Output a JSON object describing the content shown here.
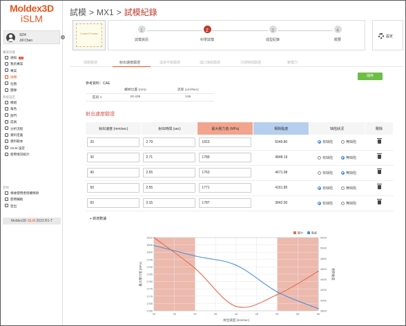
{
  "brand": {
    "line1": "Moldex3D",
    "line2": "iSLM"
  },
  "user": {
    "id": "SD4",
    "name": "Jill Chen"
  },
  "sidebar": {
    "section1": "專案功能",
    "items1": [
      {
        "label": "通知",
        "badge": "17"
      },
      {
        "label": "我的專案"
      },
      {
        "label": "專案"
      },
      {
        "label": "試模"
      },
      {
        "label": "任務"
      },
      {
        "label": "團隊"
      }
    ],
    "section2": "系統設定",
    "items2": [
      {
        "label": "模組"
      },
      {
        "label": "角色"
      },
      {
        "label": "部門"
      },
      {
        "label": "成員"
      },
      {
        "label": "分析流程"
      },
      {
        "label": "資料定義"
      },
      {
        "label": "資料範本"
      },
      {
        "label": "iSLM 設定"
      },
      {
        "label": "使用情況統計"
      }
    ],
    "section3": "其他",
    "items3": [
      {
        "label": "根據使用者授權條款"
      },
      {
        "label": "使用輔助"
      },
      {
        "label": "登出"
      }
    ],
    "version_prefix": "Moldex3D ",
    "version_accent": "iSLM",
    "version_suffix": " 2023 R1-T"
  },
  "header": {
    "crumb1": "試模",
    "crumb2": "MX1",
    "current": "試模紀錄",
    "sep": ">"
  },
  "stepper": {
    "thumb_text": "Content Preview",
    "steps": [
      {
        "num": "1",
        "label": "試模資訊"
      },
      {
        "num": "2",
        "label": "科學試模"
      },
      {
        "num": "3",
        "label": "成型紀錄"
      },
      {
        "num": "4",
        "label": "概要"
      }
    ],
    "setting_label": "設定"
  },
  "tabs": [
    "保壓驗證",
    "射出速度驗證",
    "澆道平衡驗證",
    "澆口凍結驗證",
    "冷卻時間驗證",
    "鎖模力"
  ],
  "save_label": "儲存",
  "reference": {
    "title": "參考資料：CAE",
    "headers": [
      "",
      "螺桿位置 (mm)",
      "流率 (cm³/sec)"
    ],
    "row": [
      "區段 1",
      "20.439",
      "136"
    ]
  },
  "section_title": "射出速度驗證",
  "table": {
    "headers": [
      "射出速度 (mm/sec)",
      "射出時間 (sec)",
      "最大壓力值 (MPa)",
      "相對黏度",
      "缺陷狀況",
      "刪除"
    ],
    "radio_labels": [
      "有缺陷",
      "無缺陷"
    ],
    "rows": [
      {
        "speed": "20",
        "time": "2.79",
        "pressure": "1810",
        "viscosity": "5049.80",
        "defect": 0
      },
      {
        "speed": "30",
        "time": "2.71",
        "pressure": "1789",
        "viscosity": "4848.19",
        "defect": 1
      },
      {
        "speed": "40",
        "time": "2.65",
        "pressure": "1763",
        "viscosity": "4671.98",
        "defect": 1
      },
      {
        "speed": "50",
        "time": "2.55",
        "pressure": "1771",
        "viscosity": "4161.85",
        "defect": 0
      },
      {
        "speed": "60",
        "posfix": "",
        "time": "2.15",
        "pressure": "1787",
        "viscosity": "3842.00",
        "defect": 0
      }
    ],
    "add_row": "+  新增數據"
  },
  "chart_data": {
    "type": "line",
    "xlabel": "射出速度 [mm/sec]",
    "ylabel_left": "最大壓力值 [MPa]",
    "ylabel_right": "相對黏度",
    "x_range": [
      20,
      60
    ],
    "x_ticks": [
      "20",
      "25",
      "30",
      "35",
      "40",
      "45",
      "50",
      "55",
      "60"
    ],
    "left_ylim": [
      1760,
      1810
    ],
    "left_ticks": [
      "1760",
      "1765",
      "1770",
      "1775",
      "1780",
      "1785",
      "1790",
      "1795",
      "1800",
      "1805",
      "1810"
    ],
    "right_ylim": [
      3800,
      5200
    ],
    "right_ticks": [
      "3800",
      "4000",
      "4200",
      "4400",
      "4600",
      "4800",
      "5000",
      "5200"
    ],
    "shaded_ranges": [
      [
        20,
        30
      ],
      [
        50,
        60
      ]
    ],
    "legend_position": "top-right",
    "grid": true,
    "series": [
      {
        "name": "壓力",
        "color": "#e8684a",
        "axis": "left",
        "x": [
          20,
          30,
          40,
          50,
          60
        ],
        "values": [
          1810,
          1789,
          1763,
          1771,
          1787
        ]
      },
      {
        "name": "黏度",
        "color": "#4a8fd8",
        "axis": "right",
        "x": [
          20,
          30,
          40,
          50,
          60
        ],
        "values": [
          5049.8,
          4848.19,
          4671.98,
          4161.85,
          3842.0
        ]
      }
    ]
  }
}
